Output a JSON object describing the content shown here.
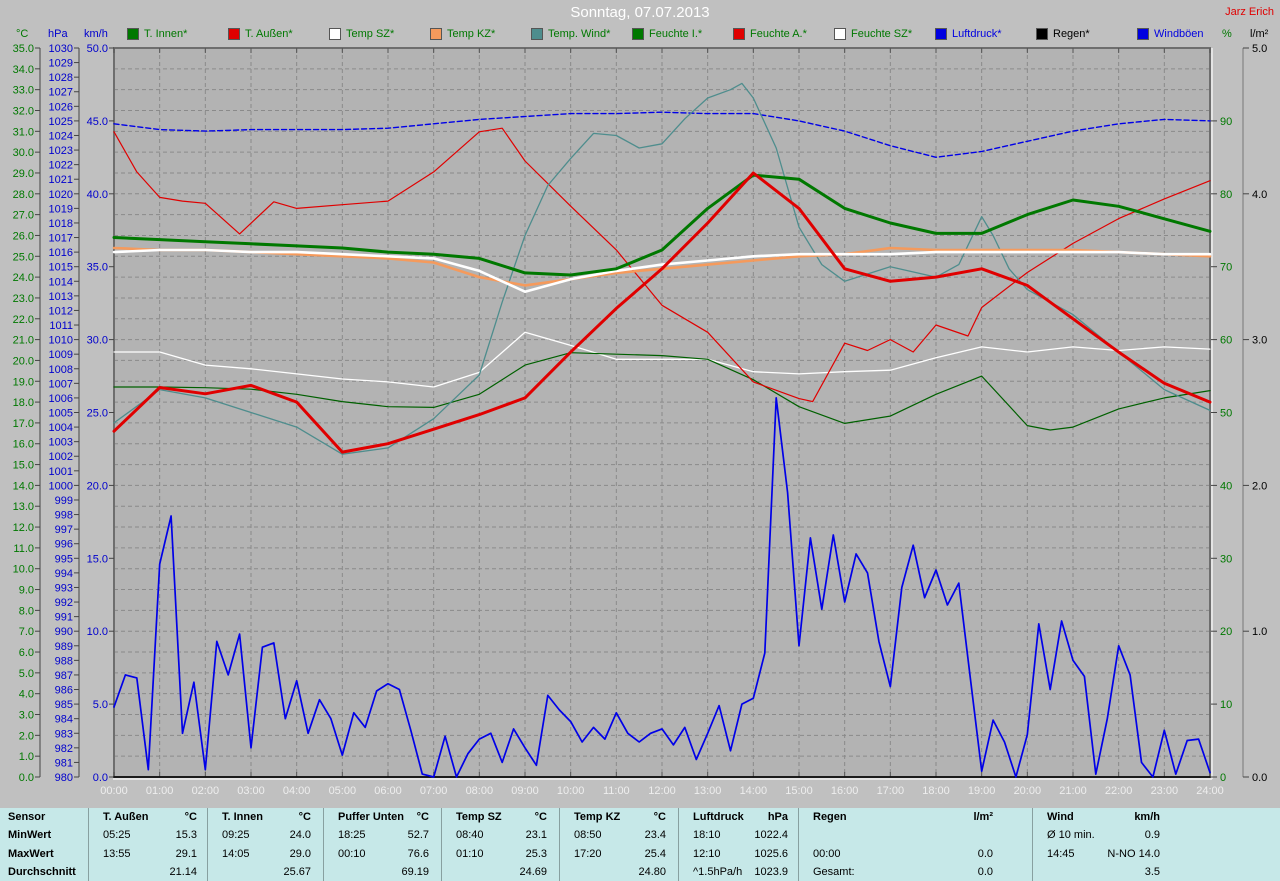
{
  "title": "Sonntag, 07.07.2013",
  "watermark": "Jarz Erich",
  "legend": {
    "items": [
      {
        "label": "T. Innen*",
        "swatch": "#007800",
        "text_color": "#007800"
      },
      {
        "label": "T. Außen*",
        "swatch": "#e00000",
        "text_color": "#007800"
      },
      {
        "label": "Temp SZ*",
        "swatch": "#ffffff",
        "text_color": "#007800"
      },
      {
        "label": "Temp KZ*",
        "swatch": "#f59a5c",
        "text_color": "#007800"
      },
      {
        "label": "Temp. Wind*",
        "swatch": "#4e8d8d",
        "text_color": "#007800"
      },
      {
        "label": "Feuchte I.*",
        "swatch": "#007800",
        "text_color": "#007800"
      },
      {
        "label": "Feuchte A.*",
        "swatch": "#e00000",
        "text_color": "#007800"
      },
      {
        "label": "Feuchte SZ*",
        "swatch": "#ffffff",
        "text_color": "#007800"
      },
      {
        "label": "Luftdruck*",
        "swatch": "#0000e0",
        "text_color": "#0000e0"
      },
      {
        "label": "Regen*",
        "swatch": "#000000",
        "text_color": "#000000"
      },
      {
        "label": "Windböen",
        "swatch": "#0000e0",
        "text_color": "#0000e0"
      }
    ]
  },
  "axes": {
    "temp": {
      "label": "°C",
      "color": "#007800",
      "decimals": 1,
      "ticks": [
        35,
        34,
        33,
        32,
        31,
        30,
        29,
        28,
        27,
        26,
        25,
        24,
        23,
        22,
        21,
        20,
        19,
        18,
        17,
        16,
        15,
        14,
        13,
        12,
        11,
        10,
        9,
        8,
        7,
        6,
        5,
        4,
        3,
        2,
        1,
        0
      ]
    },
    "pressure": {
      "label": "hPa",
      "color": "#0000cd",
      "decimals": 0,
      "ticks": [
        1030,
        1029,
        1028,
        1027,
        1026,
        1025,
        1024,
        1023,
        1022,
        1021,
        1020,
        1019,
        1018,
        1017,
        1016,
        1015,
        1014,
        1013,
        1012,
        1011,
        1010,
        1009,
        1008,
        1007,
        1006,
        1005,
        1004,
        1003,
        1002,
        1001,
        1000,
        999,
        998,
        997,
        996,
        995,
        994,
        993,
        992,
        991,
        990,
        989,
        988,
        987,
        986,
        985,
        984,
        983,
        982,
        981,
        980
      ]
    },
    "wind": {
      "label": "km/h",
      "color": "#0000cd",
      "decimals": 1,
      "ticks": [
        50,
        45,
        40,
        35,
        30,
        25,
        20,
        15,
        10,
        5,
        0
      ]
    },
    "humidity": {
      "label": "%",
      "color": "#007800",
      "decimals": 0,
      "ticks": [
        90,
        80,
        70,
        60,
        50,
        40,
        30,
        20,
        10,
        0
      ]
    },
    "rain": {
      "label": "l/m²",
      "color": "#000000",
      "decimals": 1,
      "ticks": [
        5,
        4,
        3,
        2,
        1,
        0
      ]
    },
    "time": {
      "labels": [
        "00:00",
        "01:00",
        "02:00",
        "03:00",
        "04:00",
        "05:00",
        "06:00",
        "07:00",
        "08:00",
        "09:00",
        "10:00",
        "11:00",
        "12:00",
        "13:00",
        "14:00",
        "15:00",
        "16:00",
        "17:00",
        "18:00",
        "19:00",
        "20:00",
        "21:00",
        "22:00",
        "23:00",
        "24:00"
      ]
    }
  },
  "chart_data": {
    "type": "line",
    "x_unit": "hours (0-24)",
    "grid": "dashed, 1 line per °C horizontally, 1 per hour vertically",
    "axis_ranges": {
      "temp_C": [
        0,
        35
      ],
      "pressure_hPa": [
        980,
        1030
      ],
      "wind_kmh": [
        0,
        50
      ],
      "humidity_pct": [
        0,
        100
      ],
      "rain_lm2": [
        0,
        5
      ]
    },
    "series": [
      {
        "name": "luftdruck",
        "label": "Luftdruck*",
        "axis": "hPa",
        "color": "#0000e8",
        "width": 1.4,
        "dash": "5,3",
        "x_start": 0,
        "x_step": 1,
        "values": [
          1024.8,
          1024.4,
          1024.3,
          1024.4,
          1024.4,
          1024.4,
          1024.5,
          1024.8,
          1025.1,
          1025.3,
          1025.5,
          1025.5,
          1025.6,
          1025.5,
          1025.5,
          1025.0,
          1024.3,
          1023.3,
          1022.5,
          1022.9,
          1023.6,
          1024.3,
          1024.8,
          1025.1,
          1025.0
        ]
      },
      {
        "name": "feuchte_sz",
        "label": "Feuchte SZ*",
        "axis": "pct",
        "color": "#ffffff",
        "width": 1.3,
        "x_start": 0,
        "x_step": 1,
        "values": [
          58.3,
          58.3,
          56.5,
          56.0,
          55.3,
          54.6,
          54.2,
          53.5,
          55.5,
          61.0,
          59.2,
          57.3,
          57.3,
          57.3,
          55.6,
          55.3,
          55.6,
          55.8,
          57.5,
          59.0,
          58.3,
          59.0,
          58.5,
          59.0,
          58.7
        ]
      },
      {
        "name": "feuchte_i",
        "label": "Feuchte I.*",
        "axis": "pct",
        "color": "#006000",
        "width": 1.2,
        "x": [
          0,
          1,
          2,
          3,
          4,
          5,
          6,
          7,
          8,
          9,
          10,
          11,
          12,
          13,
          14,
          15,
          16,
          17,
          18,
          19,
          20,
          20.5,
          21,
          22,
          23,
          24
        ],
        "values": [
          53.5,
          53.5,
          53.4,
          53.2,
          52.5,
          51.5,
          50.8,
          50.7,
          52.5,
          56.5,
          58.2,
          58.0,
          57.8,
          57.3,
          54.5,
          50.8,
          48.5,
          49.5,
          52.5,
          55.0,
          48.2,
          47.6,
          48.0,
          50.5,
          52.0,
          53.0
        ]
      },
      {
        "name": "feuchte_a",
        "label": "Feuchte A.*",
        "axis": "pct",
        "color": "#e00000",
        "width": 1.2,
        "x": [
          0,
          0.5,
          1,
          1.5,
          2,
          2.75,
          3.5,
          4,
          5,
          6,
          7,
          8,
          8.5,
          9,
          10,
          11,
          12,
          13,
          14,
          15,
          15.3,
          16,
          16.5,
          17,
          17.5,
          18,
          18.7,
          19,
          20,
          21,
          22,
          23,
          24
        ],
        "values": [
          88.5,
          83.0,
          79.5,
          79.0,
          78.7,
          74.5,
          78.9,
          78.0,
          78.5,
          79.0,
          83.0,
          88.5,
          89.0,
          84.5,
          78.3,
          72.3,
          64.7,
          61.0,
          54.2,
          51.9,
          51.5,
          59.5,
          58.5,
          60.0,
          58.3,
          62.0,
          60.5,
          64.4,
          69.2,
          73.2,
          76.6,
          79.3,
          81.8
        ]
      },
      {
        "name": "temp_wind",
        "label": "Temp. Wind*",
        "axis": "C",
        "color": "#4e8d8d",
        "width": 1.3,
        "x": [
          0,
          1,
          2,
          3,
          4,
          5,
          6,
          7,
          8,
          8.5,
          9,
          9.5,
          10,
          10.5,
          11,
          11.5,
          12,
          12.5,
          13,
          13.5,
          13.75,
          14,
          14.5,
          15,
          15.5,
          16,
          17,
          18,
          18.5,
          19,
          19.25,
          19.6,
          20,
          21,
          22,
          23,
          24
        ],
        "values": [
          17.0,
          18.6,
          18.2,
          17.5,
          16.8,
          15.5,
          15.8,
          17.2,
          19.3,
          22.8,
          26.0,
          28.4,
          29.7,
          30.9,
          30.8,
          30.2,
          30.4,
          31.6,
          32.6,
          33.0,
          33.3,
          32.6,
          30.2,
          26.4,
          24.6,
          23.8,
          24.5,
          24.0,
          24.6,
          26.9,
          26.0,
          24.4,
          23.4,
          22.2,
          20.4,
          18.6,
          17.6
        ]
      },
      {
        "name": "temp_kz",
        "label": "Temp KZ*",
        "axis": "C",
        "color": "#f59a5c",
        "width": 2.6,
        "x_start": 0,
        "x_step": 1,
        "values": [
          25.4,
          25.3,
          25.3,
          25.2,
          25.1,
          25.0,
          24.9,
          24.7,
          24.0,
          23.6,
          23.9,
          24.2,
          24.4,
          24.6,
          24.8,
          25.0,
          25.1,
          25.4,
          25.3,
          25.3,
          25.3,
          25.3,
          25.2,
          25.1,
          25.0
        ]
      },
      {
        "name": "temp_sz",
        "label": "Temp SZ*",
        "axis": "C",
        "color": "#ffffff",
        "width": 2.6,
        "x_start": 0,
        "x_step": 1,
        "values": [
          25.2,
          25.3,
          25.3,
          25.2,
          25.2,
          25.1,
          25.0,
          24.9,
          24.3,
          23.3,
          23.9,
          24.3,
          24.6,
          24.8,
          25.0,
          25.1,
          25.1,
          25.1,
          25.2,
          25.2,
          25.2,
          25.2,
          25.2,
          25.1,
          25.1
        ]
      },
      {
        "name": "t_innen",
        "label": "T. Innen*",
        "axis": "C",
        "color": "#007800",
        "width": 3,
        "x_start": 0,
        "x_step": 1,
        "values": [
          25.9,
          25.8,
          25.7,
          25.6,
          25.5,
          25.4,
          25.2,
          25.1,
          24.9,
          24.2,
          24.1,
          24.4,
          25.3,
          27.3,
          28.9,
          28.7,
          27.3,
          26.6,
          26.1,
          26.1,
          27.0,
          27.7,
          27.4,
          26.8,
          26.2
        ]
      },
      {
        "name": "t_aussen",
        "label": "T. Außen*",
        "axis": "C",
        "color": "#e00000",
        "width": 3,
        "x_start": 0,
        "x_step": 1,
        "values": [
          16.6,
          18.7,
          18.4,
          18.8,
          18.0,
          15.6,
          16.0,
          16.7,
          17.4,
          18.2,
          20.4,
          22.5,
          24.4,
          26.6,
          29.0,
          27.3,
          24.4,
          23.8,
          24.0,
          24.4,
          23.6,
          22.0,
          20.4,
          18.9,
          18.0
        ]
      },
      {
        "name": "regen",
        "label": "Regen*",
        "axis": "lm2",
        "color": "#000000",
        "width": 1.5,
        "x": [
          0,
          24
        ],
        "values": [
          0,
          0
        ]
      },
      {
        "name": "windboeen",
        "label": "Windböen",
        "axis": "kmh",
        "color": "#0000e8",
        "width": 1.7,
        "x_start": 0,
        "x_step": 0.25,
        "values": [
          4.8,
          7.0,
          6.8,
          0.5,
          14.6,
          17.9,
          3.0,
          6.5,
          0.5,
          9.3,
          7.0,
          9.8,
          2.0,
          8.9,
          9.2,
          4.0,
          6.6,
          3.0,
          5.3,
          4.0,
          1.5,
          4.4,
          3.4,
          5.9,
          6.4,
          6.0,
          3.2,
          0.2,
          0.0,
          2.8,
          0.0,
          1.6,
          2.6,
          3.0,
          1.0,
          3.3,
          2.0,
          0.8,
          5.6,
          4.6,
          3.8,
          2.4,
          3.4,
          2.6,
          4.4,
          3.0,
          2.4,
          3.0,
          3.3,
          2.2,
          3.4,
          1.2,
          3.0,
          4.9,
          1.8,
          5.0,
          5.4,
          8.5,
          26.0,
          19.5,
          9.0,
          16.4,
          11.5,
          16.6,
          12.0,
          15.3,
          14.0,
          9.3,
          6.2,
          13.0,
          15.9,
          12.3,
          14.2,
          11.8,
          13.3,
          6.8,
          0.4,
          3.9,
          2.4,
          0.0,
          2.9,
          10.5,
          6.0,
          10.7,
          8.0,
          6.9,
          0.2,
          4.0,
          9.0,
          7.0,
          1.0,
          0.0,
          3.2,
          0.2,
          2.5,
          2.6,
          0.3
        ]
      }
    ]
  },
  "table": {
    "row_labels": [
      "Sensor",
      "MinWert",
      "MaxWert",
      "Durchschnitt"
    ],
    "columns": [
      {
        "name": "T. Außen",
        "unit": "°C",
        "min_time": "05:25",
        "min": "15.3",
        "max_time": "13:55",
        "max": "29.1",
        "avg_label": "",
        "avg": "21.14"
      },
      {
        "name": "T. Innen",
        "unit": "°C",
        "min_time": "09:25",
        "min": "24.0",
        "max_time": "14:05",
        "max": "29.0",
        "avg_label": "",
        "avg": "25.67"
      },
      {
        "name": "Puffer Unten",
        "unit": "°C",
        "min_time": "18:25",
        "min": "52.7",
        "max_time": "00:10",
        "max": "76.6",
        "avg_label": "",
        "avg": "69.19"
      },
      {
        "name": "Temp SZ",
        "unit": "°C",
        "min_time": "08:40",
        "min": "23.1",
        "max_time": "01:10",
        "max": "25.3",
        "avg_label": "",
        "avg": "24.69"
      },
      {
        "name": "Temp KZ",
        "unit": "°C",
        "min_time": "08:50",
        "min": "23.4",
        "max_time": "17:20",
        "max": "25.4",
        "avg_label": "",
        "avg": "24.80"
      },
      {
        "name": "Luftdruck",
        "unit": "hPa",
        "min_time": "18:10",
        "min": "1022.4",
        "max_time": "12:10",
        "max": "1025.6",
        "avg_label": "^1.5hPa/h",
        "avg": "1023.9"
      },
      {
        "name": "Regen",
        "unit": "l/m²",
        "min_time": "",
        "min": "",
        "max_time": "00:00",
        "max": "0.0",
        "avg_label": "Gesamt:",
        "avg": "0.0"
      },
      {
        "name": "Wind",
        "unit": "km/h",
        "min_time": "Ø 10 min.",
        "min": "0.9",
        "max_time": "14:45",
        "max": "N-NO 14.0",
        "avg_label": "",
        "avg": "3.5"
      }
    ]
  }
}
